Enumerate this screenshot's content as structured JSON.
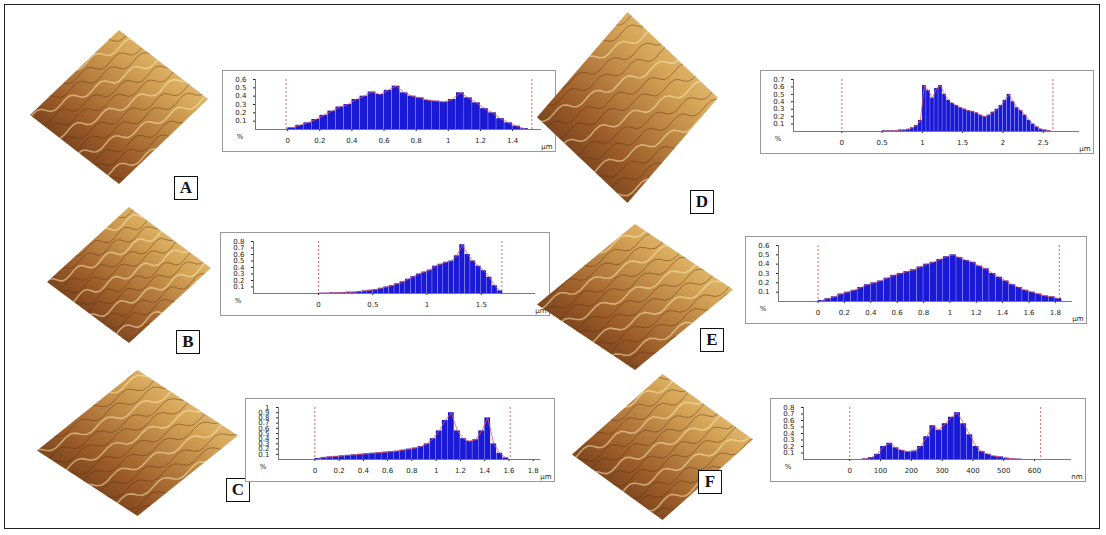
{
  "chart_data": [
    {
      "type": "histogram",
      "title": "A",
      "color": "#1a1ad6",
      "bins": [
        0,
        0.05,
        0.1,
        0.15,
        0.2,
        0.25,
        0.3,
        0.35,
        0.4,
        0.45,
        0.5,
        0.55,
        0.6,
        0.65,
        0.7,
        0.75,
        0.8,
        0.85,
        0.9,
        0.95,
        1,
        1.05,
        1.1,
        1.15,
        1.2,
        1.25,
        1.3,
        1.35,
        1.4,
        1.45,
        1.5
      ],
      "counts": [
        0.02,
        0.05,
        0.08,
        0.12,
        0.17,
        0.22,
        0.27,
        0.3,
        0.36,
        0.4,
        0.45,
        0.42,
        0.47,
        0.52,
        0.44,
        0.4,
        0.38,
        0.35,
        0.34,
        0.33,
        0.36,
        0.44,
        0.38,
        0.32,
        0.25,
        0.2,
        0.13,
        0.08,
        0.04,
        0.01
      ],
      "xlim": [
        -0.2,
        1.58
      ],
      "xticks": [
        0,
        0.2,
        0.4,
        0.6,
        0.8,
        1,
        1.2,
        1.4
      ],
      "xlabel": "µm",
      "ylim": [
        0,
        0.6
      ],
      "yticks": [
        0.1,
        0.2,
        0.3,
        0.4,
        0.5,
        0.6
      ],
      "ylabel": "%",
      "cursors": [
        -0.01,
        1.52
      ]
    },
    {
      "type": "histogram",
      "title": "B",
      "color": "#1a1ad6",
      "bins": [
        0,
        0.05,
        0.1,
        0.15,
        0.2,
        0.25,
        0.3,
        0.35,
        0.4,
        0.45,
        0.5,
        0.55,
        0.6,
        0.65,
        0.7,
        0.75,
        0.8,
        0.85,
        0.9,
        0.95,
        1,
        1.05,
        1.1,
        1.15,
        1.2,
        1.25,
        1.3,
        1.35,
        1.4,
        1.45,
        1.5,
        1.55,
        1.6,
        1.65,
        1.7
      ],
      "counts": [
        0.005,
        0.005,
        0.01,
        0.01,
        0.015,
        0.02,
        0.02,
        0.03,
        0.04,
        0.05,
        0.06,
        0.08,
        0.1,
        0.12,
        0.15,
        0.18,
        0.22,
        0.26,
        0.3,
        0.33,
        0.36,
        0.42,
        0.45,
        0.48,
        0.5,
        0.58,
        0.75,
        0.6,
        0.5,
        0.42,
        0.35,
        0.25,
        0.12,
        0.04
      ],
      "xlim": [
        -0.6,
        2.0
      ],
      "xticks": [
        0,
        0.5,
        1,
        1.5
      ],
      "xlabel": "µm",
      "ylim": [
        0,
        0.8
      ],
      "yticks": [
        0.1,
        0.2,
        0.3,
        0.4,
        0.5,
        0.6,
        0.7,
        0.8
      ],
      "ylabel": "%",
      "cursors": [
        0,
        1.69
      ]
    },
    {
      "type": "histogram",
      "title": "C",
      "color": "#1a1ad6",
      "bins": [
        0,
        0.05,
        0.1,
        0.15,
        0.2,
        0.25,
        0.3,
        0.35,
        0.4,
        0.45,
        0.5,
        0.55,
        0.6,
        0.65,
        0.7,
        0.75,
        0.8,
        0.85,
        0.9,
        0.95,
        1,
        1.05,
        1.1,
        1.15,
        1.2,
        1.25,
        1.3,
        1.35,
        1.4,
        1.45,
        1.5,
        1.55,
        1.6
      ],
      "counts": [
        0.02,
        0.04,
        0.05,
        0.06,
        0.07,
        0.08,
        0.09,
        0.1,
        0.11,
        0.12,
        0.13,
        0.14,
        0.15,
        0.16,
        0.18,
        0.2,
        0.22,
        0.25,
        0.3,
        0.4,
        0.55,
        0.75,
        0.9,
        0.55,
        0.4,
        0.35,
        0.38,
        0.55,
        0.8,
        0.3,
        0.12,
        0.03
      ],
      "xlim": [
        -0.3,
        1.86
      ],
      "xticks": [
        0,
        0.2,
        0.4,
        0.6,
        0.8,
        1,
        1.2,
        1.4,
        1.6,
        1.8
      ],
      "xlabel": "µm",
      "ylim": [
        0,
        1
      ],
      "yticks": [
        0.1,
        0.2,
        0.3,
        0.4,
        0.5,
        0.6,
        0.7,
        0.8,
        0.9,
        1
      ],
      "ylabel": "%",
      "cursors": [
        0,
        1.61
      ]
    },
    {
      "type": "histogram",
      "title": "D",
      "color": "#1a1ad6",
      "bins": [
        0.5,
        0.55,
        0.6,
        0.65,
        0.7,
        0.75,
        0.8,
        0.85,
        0.9,
        0.95,
        1,
        1.05,
        1.1,
        1.15,
        1.2,
        1.25,
        1.3,
        1.35,
        1.4,
        1.45,
        1.5,
        1.55,
        1.6,
        1.65,
        1.7,
        1.75,
        1.8,
        1.85,
        1.9,
        1.95,
        2,
        2.05,
        2.1,
        2.15,
        2.2,
        2.25,
        2.3,
        2.35,
        2.4,
        2.45,
        2.5,
        2.55,
        2.6
      ],
      "counts": [
        0.01,
        0.01,
        0.01,
        0.01,
        0.02,
        0.02,
        0.03,
        0.05,
        0.08,
        0.15,
        0.62,
        0.55,
        0.45,
        0.58,
        0.62,
        0.5,
        0.42,
        0.38,
        0.35,
        0.32,
        0.3,
        0.28,
        0.27,
        0.25,
        0.22,
        0.2,
        0.22,
        0.26,
        0.3,
        0.35,
        0.42,
        0.5,
        0.4,
        0.32,
        0.28,
        0.22,
        0.15,
        0.1,
        0.06,
        0.03,
        0.02,
        0.01
      ],
      "xlim": [
        -0.6,
        2.95
      ],
      "xticks": [
        0,
        0.5,
        1,
        1.5,
        2,
        2.5
      ],
      "xlabel": "µm",
      "ylim": [
        0,
        0.7
      ],
      "yticks": [
        0.1,
        0.2,
        0.3,
        0.4,
        0.5,
        0.6,
        0.7
      ],
      "ylabel": "%",
      "cursors": [
        0,
        2.62
      ]
    },
    {
      "type": "histogram",
      "title": "E",
      "color": "#1a1ad6",
      "bins": [
        0,
        0.05,
        0.1,
        0.15,
        0.2,
        0.25,
        0.3,
        0.35,
        0.4,
        0.45,
        0.5,
        0.55,
        0.6,
        0.65,
        0.7,
        0.75,
        0.8,
        0.85,
        0.9,
        0.95,
        1,
        1.05,
        1.1,
        1.15,
        1.2,
        1.25,
        1.3,
        1.35,
        1.4,
        1.45,
        1.5,
        1.55,
        1.6,
        1.65,
        1.7,
        1.75,
        1.8,
        1.85
      ],
      "counts": [
        0.01,
        0.03,
        0.05,
        0.08,
        0.1,
        0.12,
        0.15,
        0.18,
        0.2,
        0.22,
        0.25,
        0.28,
        0.3,
        0.32,
        0.34,
        0.37,
        0.4,
        0.42,
        0.45,
        0.48,
        0.5,
        0.47,
        0.44,
        0.42,
        0.38,
        0.35,
        0.3,
        0.26,
        0.22,
        0.18,
        0.15,
        0.12,
        0.1,
        0.08,
        0.06,
        0.05,
        0.03
      ],
      "xlim": [
        -0.3,
        1.93
      ],
      "xticks": [
        0,
        0.2,
        0.4,
        0.6,
        0.8,
        1,
        1.2,
        1.4,
        1.6,
        1.8
      ],
      "xlabel": "µm",
      "ylim": [
        0,
        0.6
      ],
      "yticks": [
        0.1,
        0.2,
        0.3,
        0.4,
        0.5,
        0.6
      ],
      "ylabel": "%",
      "cursors": [
        0,
        1.83
      ]
    },
    {
      "type": "histogram",
      "title": "F",
      "color": "#1a1ad6",
      "bins": [
        40,
        60,
        80,
        100,
        120,
        140,
        160,
        180,
        200,
        220,
        240,
        260,
        280,
        300,
        320,
        340,
        360,
        380,
        400,
        420,
        440,
        460,
        480,
        500,
        520,
        540,
        560
      ],
      "counts": [
        0.01,
        0.03,
        0.08,
        0.2,
        0.25,
        0.18,
        0.14,
        0.12,
        0.13,
        0.2,
        0.35,
        0.52,
        0.45,
        0.55,
        0.65,
        0.72,
        0.55,
        0.38,
        0.2,
        0.12,
        0.08,
        0.05,
        0.04,
        0.02,
        0.01,
        0.005
      ],
      "xlim": [
        -150,
        720
      ],
      "xticks": [
        0,
        100,
        200,
        300,
        400,
        500,
        600
      ],
      "xlabel": "nm",
      "ylim": [
        0,
        0.8
      ],
      "yticks": [
        0.1,
        0.2,
        0.3,
        0.4,
        0.5,
        0.6,
        0.7,
        0.8
      ],
      "ylabel": "%",
      "cursors": [
        0,
        620
      ]
    }
  ]
}
